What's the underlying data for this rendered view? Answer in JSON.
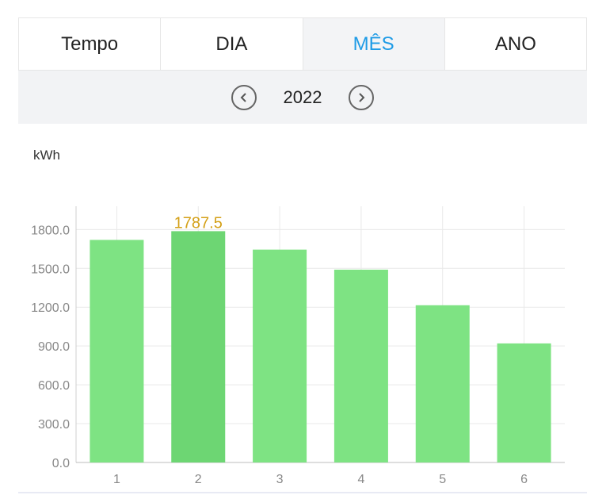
{
  "tabs": [
    {
      "label": "Tempo",
      "active": false
    },
    {
      "label": "DIA",
      "active": false
    },
    {
      "label": "MÊS",
      "active": true
    },
    {
      "label": "ANO",
      "active": false
    }
  ],
  "period": {
    "year": "2022",
    "prev_icon": "chevron-left-icon",
    "next_icon": "chevron-right-icon"
  },
  "colors": {
    "accent": "#1e9be6",
    "bar": "#7ee383",
    "bar_selected": "#6dd673",
    "value_label": "#d4a017"
  },
  "chart_data": {
    "type": "bar",
    "ylabel": "kWh",
    "categories": [
      "1",
      "2",
      "3",
      "4",
      "5",
      "6"
    ],
    "values": [
      1720,
      1787.5,
      1645,
      1490,
      1215,
      920
    ],
    "ylim": [
      0,
      1980
    ],
    "yticks": [
      "0.0",
      "300.0",
      "600.0",
      "900.0",
      "1200.0",
      "1500.0",
      "1800.0"
    ],
    "ytick_values": [
      0,
      300,
      600,
      900,
      1200,
      1500,
      1800
    ],
    "selected_index": 1,
    "selected_label": "1787.5",
    "grid": true
  }
}
